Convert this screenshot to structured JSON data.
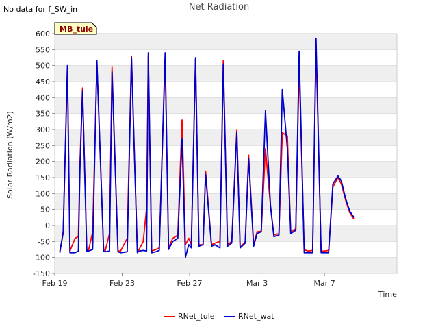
{
  "header": {
    "no_data_text": "No data for f_SW_in"
  },
  "site_badge": "MB_tule",
  "legend": {
    "items": [
      "RNet_tule",
      "RNet_wat"
    ]
  },
  "colors": {
    "RNet_tule": "#ff0000",
    "RNet_wat": "#0000cc",
    "band": "#efefef",
    "badge_fill": "#ffffc4",
    "badge_text": "#8b0000"
  },
  "chart_data": {
    "type": "line",
    "title": "Net Radiation",
    "xlabel": "Time",
    "ylabel": "Solar Radiation (W/m2)",
    "xlim": [
      0,
      20.3
    ],
    "ylim": [
      -150,
      600
    ],
    "yticks": [
      -150,
      -100,
      -50,
      0,
      50,
      100,
      150,
      200,
      250,
      300,
      350,
      400,
      450,
      500,
      550,
      600
    ],
    "xticks": [
      {
        "value": 0,
        "label": "Feb 19"
      },
      {
        "value": 4,
        "label": "Feb 23"
      },
      {
        "value": 8,
        "label": "Feb 27"
      },
      {
        "value": 12,
        "label": "Mar 3"
      },
      {
        "value": 16,
        "label": "Mar 7"
      }
    ],
    "series": [
      {
        "name": "RNet_tule",
        "x": [
          0.3,
          0.5,
          0.75,
          0.9,
          1.2,
          1.4,
          1.5,
          1.65,
          1.9,
          2.0,
          2.25,
          2.5,
          2.9,
          3.0,
          3.25,
          3.4,
          3.75,
          3.9,
          4.3,
          4.55,
          4.9,
          5.0,
          5.25,
          5.45,
          5.55,
          5.75,
          6.0,
          6.2,
          6.55,
          6.75,
          7.0,
          7.3,
          7.55,
          7.75,
          7.95,
          8.1,
          8.35,
          8.55,
          8.8,
          8.95,
          9.3,
          9.5,
          9.8,
          10.0,
          10.25,
          10.5,
          10.8,
          11.0,
          11.3,
          11.5,
          11.8,
          12.0,
          12.25,
          12.5,
          12.8,
          13.0,
          13.3,
          13.5,
          13.8,
          14.0,
          14.3,
          14.5,
          14.8,
          15.0,
          15.3,
          15.5,
          15.8,
          16.0,
          16.25,
          16.5,
          16.8,
          17.0,
          17.25,
          17.5,
          17.75
        ],
        "y": [
          -80,
          -25,
          490,
          -80,
          -40,
          -35,
          200,
          430,
          -75,
          -78,
          -20,
          510,
          -75,
          -78,
          -25,
          495,
          -80,
          -80,
          -40,
          530,
          -80,
          -75,
          -50,
          55,
          530,
          -80,
          -75,
          -70,
          520,
          -70,
          -40,
          -30,
          330,
          -60,
          -40,
          -60,
          520,
          -60,
          -60,
          170,
          -60,
          -55,
          -50,
          515,
          -60,
          -50,
          300,
          -70,
          -50,
          220,
          -60,
          -20,
          -18,
          240,
          60,
          -30,
          -25,
          290,
          280,
          -20,
          -10,
          500,
          -75,
          -80,
          -78,
          560,
          -80,
          -80,
          -78,
          120,
          150,
          130,
          80,
          40,
          20
        ]
      },
      {
        "name": "RNet_wat",
        "x": [
          0.3,
          0.5,
          0.75,
          0.9,
          1.2,
          1.4,
          1.5,
          1.65,
          1.9,
          2.0,
          2.25,
          2.5,
          2.9,
          3.0,
          3.25,
          3.4,
          3.75,
          3.9,
          4.3,
          4.55,
          4.9,
          5.0,
          5.25,
          5.45,
          5.55,
          5.75,
          6.0,
          6.2,
          6.55,
          6.75,
          7.0,
          7.3,
          7.55,
          7.75,
          7.95,
          8.1,
          8.35,
          8.55,
          8.8,
          8.95,
          9.3,
          9.5,
          9.8,
          10.0,
          10.25,
          10.5,
          10.8,
          11.0,
          11.3,
          11.5,
          11.8,
          12.0,
          12.25,
          12.5,
          12.8,
          13.0,
          13.3,
          13.5,
          13.8,
          14.0,
          14.3,
          14.5,
          14.8,
          15.0,
          15.3,
          15.5,
          15.8,
          16.0,
          16.25,
          16.5,
          16.8,
          17.0,
          17.25,
          17.5,
          17.75
        ],
        "y": [
          -85,
          -20,
          500,
          -85,
          -85,
          -80,
          180,
          420,
          -80,
          -80,
          -75,
          515,
          -80,
          -82,
          -80,
          480,
          -82,
          -85,
          -82,
          525,
          -85,
          -80,
          -78,
          -80,
          540,
          -85,
          -82,
          -78,
          540,
          -75,
          -50,
          -40,
          270,
          -100,
          -60,
          -70,
          525,
          -65,
          -60,
          160,
          -65,
          -60,
          -70,
          505,
          -65,
          -55,
          290,
          -70,
          -55,
          210,
          -65,
          -25,
          -20,
          360,
          60,
          -35,
          -30,
          425,
          240,
          -25,
          -15,
          545,
          -85,
          -85,
          -85,
          585,
          -85,
          -85,
          -85,
          130,
          155,
          140,
          85,
          45,
          25
        ]
      }
    ]
  }
}
